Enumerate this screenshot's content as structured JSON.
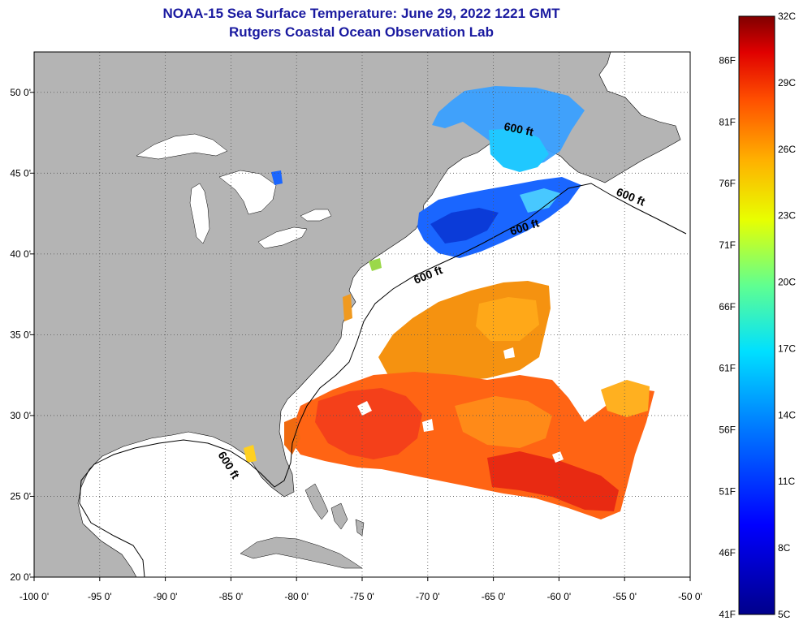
{
  "header": {
    "title": "NOAA-15 Sea Surface Temperature:  June 29, 2022 1221 GMT",
    "subtitle": "Rutgers Coastal Ocean Observation Lab"
  },
  "map": {
    "lon_range": [
      -100,
      -50
    ],
    "lat_range": [
      20,
      52.5
    ],
    "lon_ticks": [
      "-100 0'",
      "-95 0'",
      "-90 0'",
      "-85 0'",
      "-80 0'",
      "-75 0'",
      "-70 0'",
      "-65 0'",
      "-60 0'",
      "-55 0'",
      "-50 0'"
    ],
    "lat_ticks": [
      "20 0'",
      "25 0'",
      "30 0'",
      "35 0'",
      "40 0'",
      "45 0'",
      "50 0'"
    ],
    "contour_label": "600 ft",
    "land_color": "#b4b4b4",
    "no_data_color": "#ffffff"
  },
  "colorbar": {
    "celsius_labels": [
      "32C",
      "29C",
      "26C",
      "23C",
      "20C",
      "17C",
      "14C",
      "11C",
      "8C",
      "5C"
    ],
    "fahrenheit_labels": [
      "86F",
      "81F",
      "76F",
      "71F",
      "66F",
      "61F",
      "56F",
      "51F",
      "46F",
      "41F"
    ],
    "range_c": [
      5,
      32
    ]
  }
}
